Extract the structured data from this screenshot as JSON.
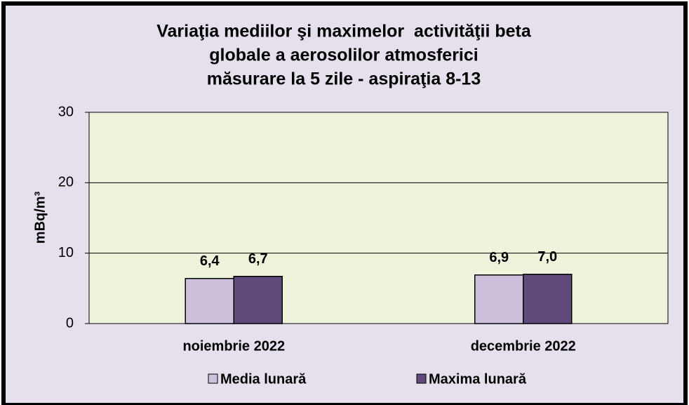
{
  "chart_data": {
    "type": "bar",
    "title": [
      "Variaţia mediilor şi maximelor  activităţii beta",
      "globale a aerosolilor atmosferici",
      "măsurare la 5 zile - aspiraţia 8-13"
    ],
    "ylabel": "mBq/m³",
    "categories": [
      "noiembrie 2022",
      "decembrie 2022"
    ],
    "series": [
      {
        "name": "Media lunară",
        "color": "#ccc0dc",
        "values": [
          6.4,
          6.9
        ],
        "value_labels": [
          "6,4",
          "6,9"
        ]
      },
      {
        "name": "Maxima lunară",
        "color": "#5f4a7b",
        "values": [
          6.7,
          7.0
        ],
        "value_labels": [
          "6,7",
          "7,0"
        ]
      }
    ],
    "ylim": [
      0,
      30
    ],
    "yticks": [
      0,
      10,
      20,
      30
    ],
    "grid": true
  }
}
